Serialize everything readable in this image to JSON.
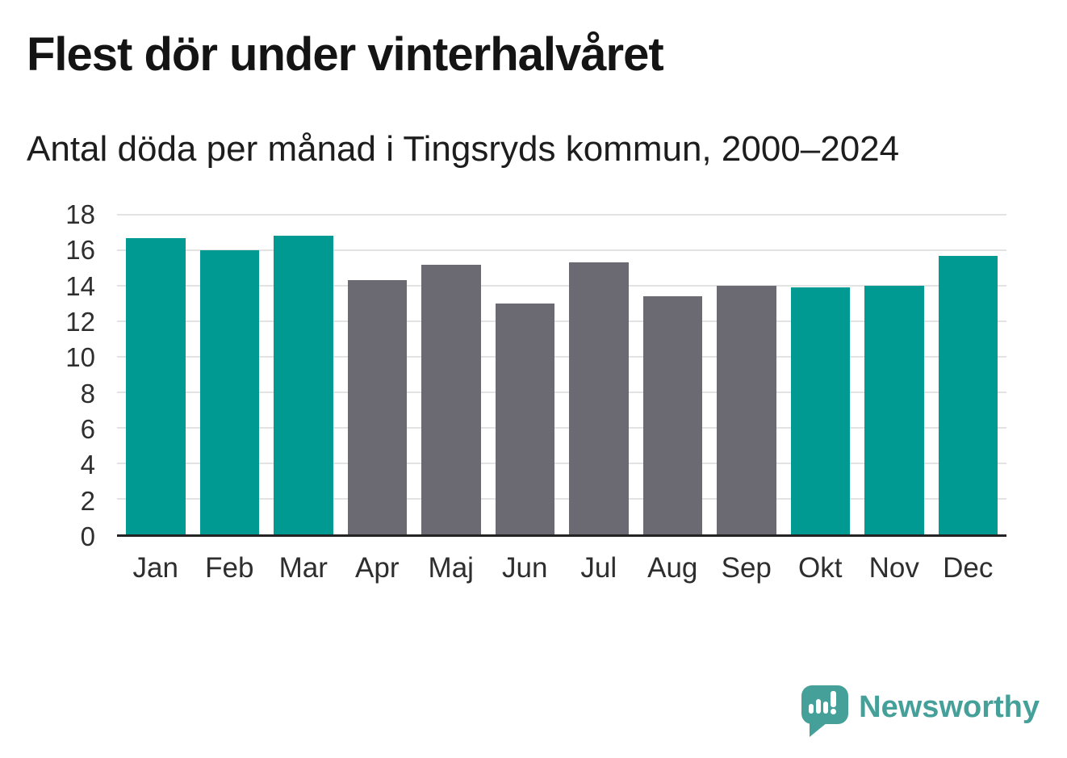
{
  "header": {
    "title": "Flest dör under vinterhalvåret",
    "subtitle": "Antal döda per månad i Tingsryds kommun, 2000–2024"
  },
  "chart_data": {
    "type": "bar",
    "title": "Flest dör under vinterhalvåret",
    "subtitle": "Antal döda per månad i Tingsryds kommun, 2000–2024",
    "categories": [
      "Jan",
      "Feb",
      "Mar",
      "Apr",
      "Maj",
      "Jun",
      "Jul",
      "Aug",
      "Sep",
      "Okt",
      "Nov",
      "Dec"
    ],
    "values": [
      16.7,
      16.0,
      16.8,
      14.3,
      15.2,
      13.0,
      15.3,
      13.4,
      14.0,
      13.9,
      14.0,
      15.7
    ],
    "highlight_winter_months": [
      true,
      true,
      true,
      false,
      false,
      false,
      false,
      false,
      false,
      true,
      true,
      true
    ],
    "colors": {
      "winter": "#009a93",
      "summer": "#6b6a72"
    },
    "xlabel": "",
    "ylabel": "",
    "ylim": [
      0,
      18
    ],
    "yticks": [
      0,
      2,
      4,
      6,
      8,
      10,
      12,
      14,
      16,
      18
    ],
    "grid": true,
    "legend": "none",
    "axis_colors": {
      "gridline": "#e3e3e3",
      "baseline": "#242424",
      "tick_text": "#2e2e2e"
    }
  },
  "branding": {
    "name": "Newsworthy",
    "logo_icon": "speech-bubble-bar-chart-icon",
    "color": "#46a09a"
  }
}
